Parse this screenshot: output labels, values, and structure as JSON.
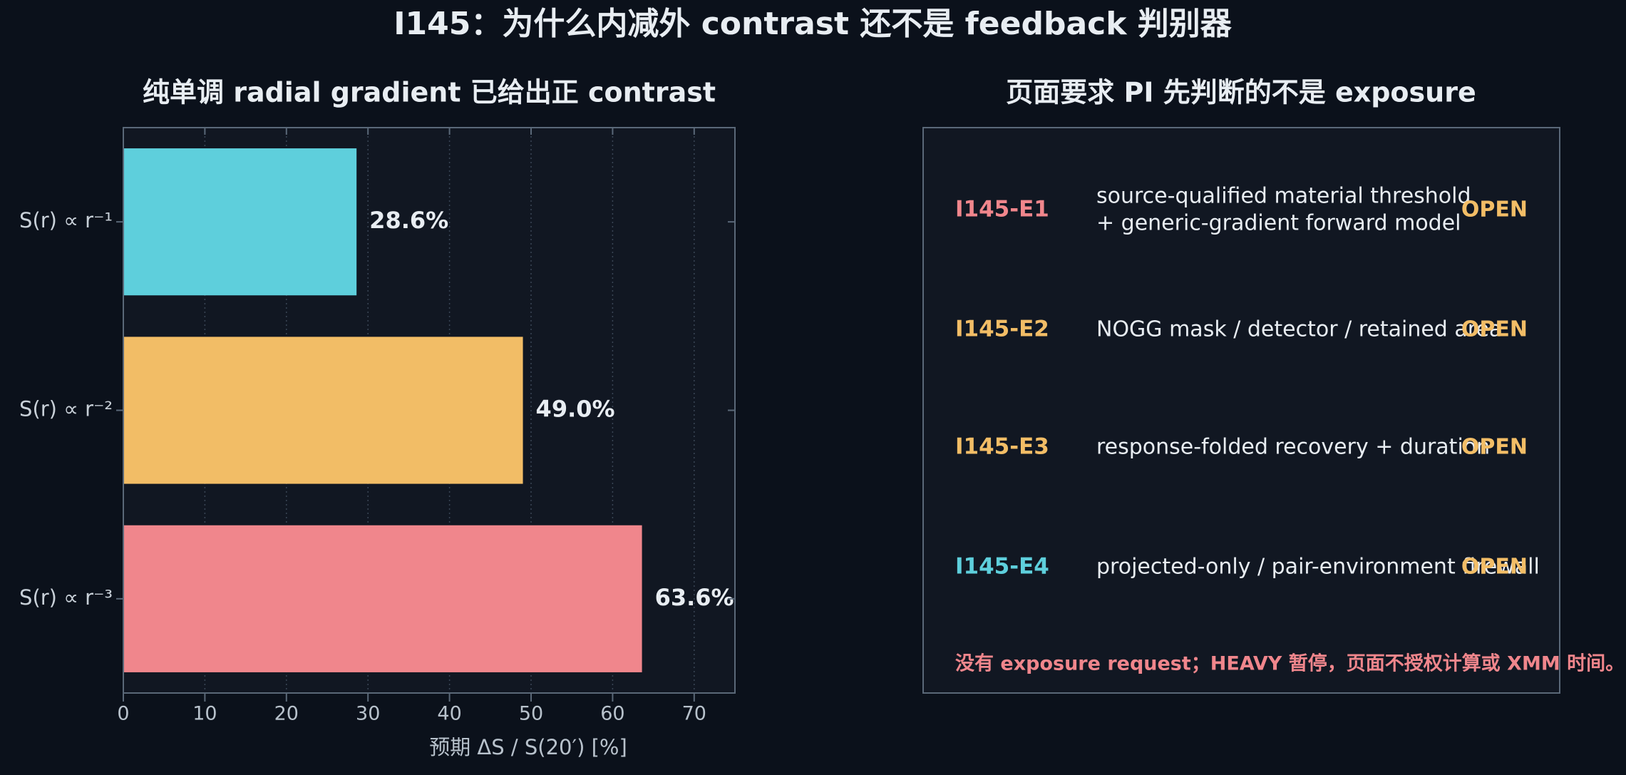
{
  "title": "I145：为什么内减外 contrast 还不是 feedback 判别器",
  "chart_data": {
    "type": "bar",
    "orientation": "horizontal",
    "title": "纯单调 radial gradient 已给出正 contrast",
    "categories": [
      "S(r) ∝ r⁻¹",
      "S(r) ∝ r⁻²",
      "S(r) ∝ r⁻³"
    ],
    "values": [
      28.6,
      49.0,
      63.6
    ],
    "value_labels": [
      "28.6%",
      "49.0%",
      "63.6%"
    ],
    "colors": [
      "#5ecfdc",
      "#f2bd66",
      "#f0868c"
    ],
    "xlabel": "预期 ΔS / S(20′) [%]",
    "xlim": [
      0,
      75
    ],
    "xticks": [
      0,
      10,
      20,
      30,
      40,
      50,
      60,
      70
    ],
    "grid": true
  },
  "panel": {
    "title": "页面要求 PI 先判断的不是 exposure",
    "rows": [
      {
        "id": "I145-E1",
        "color": "#f0868c",
        "lines": [
          "source-qualified material threshold",
          "+ generic-gradient forward model"
        ],
        "status": "OPEN"
      },
      {
        "id": "I145-E2",
        "color": "#f2bd66",
        "lines": [
          "NOGG mask / detector / retained area"
        ],
        "status": "OPEN"
      },
      {
        "id": "I145-E3",
        "color": "#f2bd66",
        "lines": [
          "response-folded recovery + duration"
        ],
        "status": "OPEN"
      },
      {
        "id": "I145-E4",
        "color": "#5ecfdc",
        "lines": [
          "projected-only / pair-environment firewall"
        ],
        "status": "OPEN"
      }
    ],
    "footer": "没有 exposure request；HEAVY 暂停，页面不授权计算或 XMM 时间。"
  }
}
